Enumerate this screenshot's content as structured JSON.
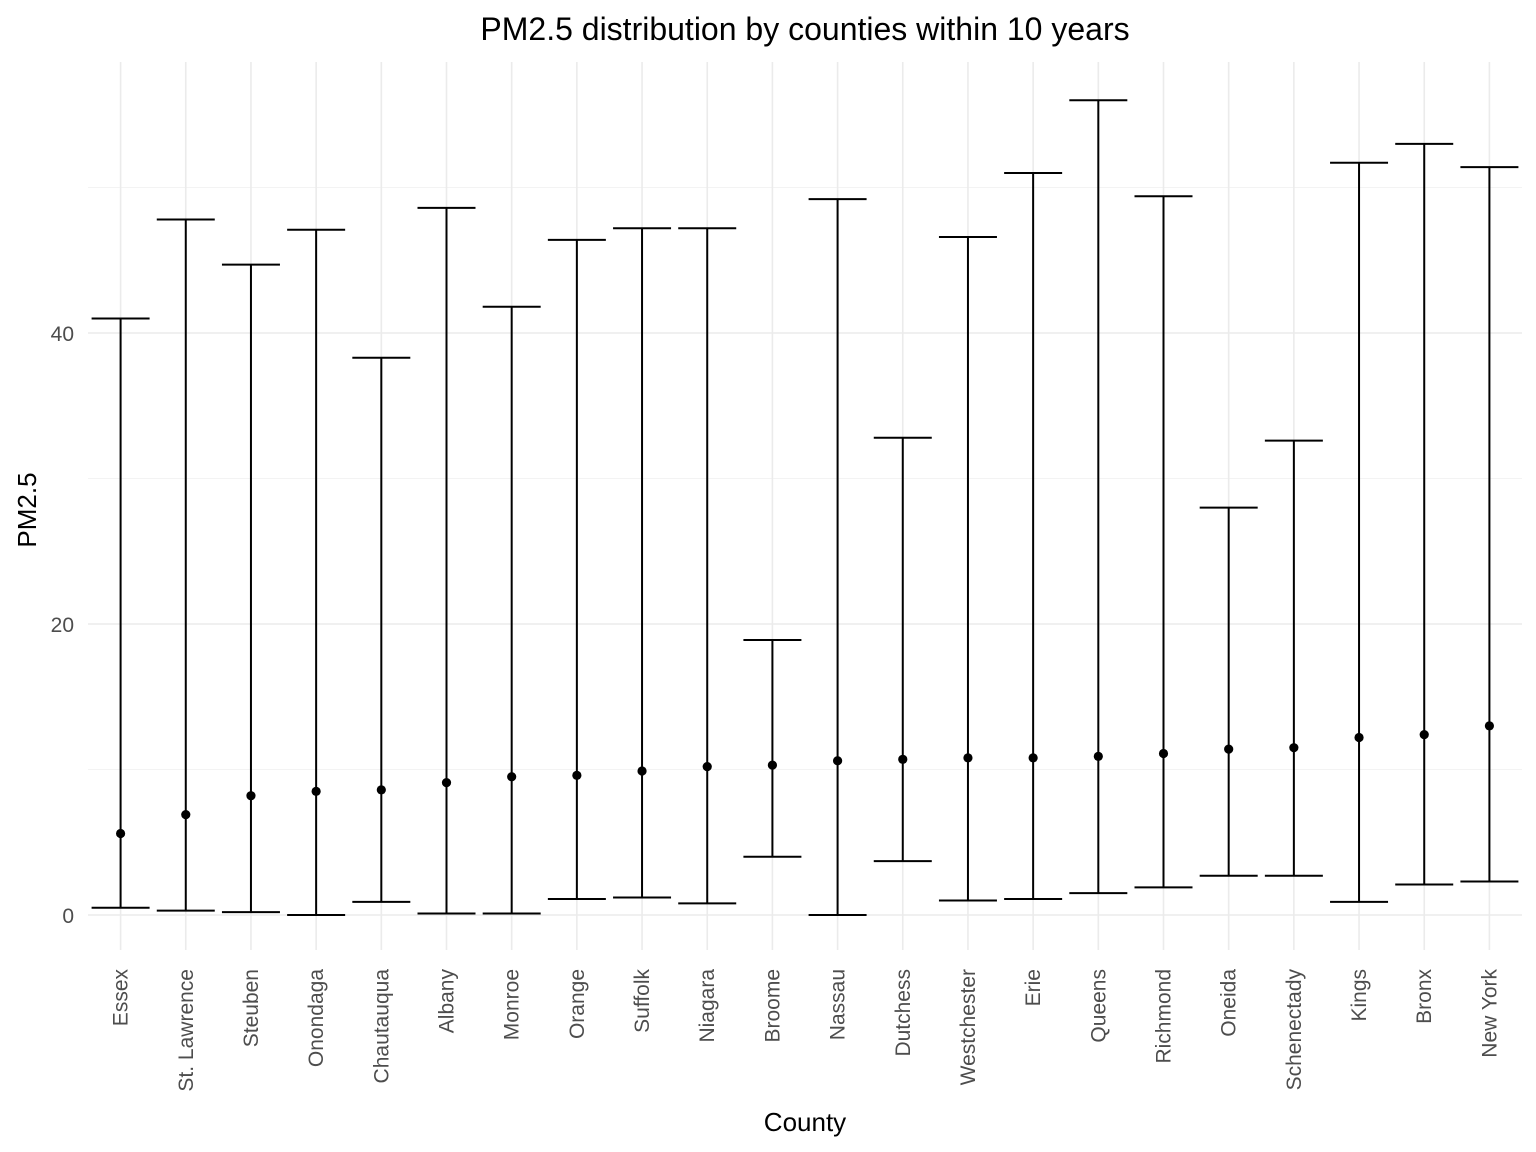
{
  "chart_data": {
    "type": "errorbar",
    "title": "PM2.5 distribution by counties within 10 years",
    "xlabel": "County",
    "ylabel": "PM2.5",
    "ylim": [
      -2.5,
      58.5
    ],
    "yticks": [
      0,
      20,
      40
    ],
    "grid": true,
    "legend": "none",
    "categories": [
      "Essex",
      "St. Lawrence",
      "Steuben",
      "Onondaga",
      "Chautauqua",
      "Albany",
      "Monroe",
      "Orange",
      "Suffolk",
      "Niagara",
      "Broome",
      "Nassau",
      "Dutchess",
      "Westchester",
      "Erie",
      "Queens",
      "Richmond",
      "Oneida",
      "Schenectady",
      "Kings",
      "Bronx",
      "New York"
    ],
    "series": [
      {
        "name": "mean",
        "values": [
          5.6,
          6.9,
          8.2,
          8.5,
          8.6,
          9.1,
          9.5,
          9.6,
          9.9,
          10.2,
          10.3,
          10.6,
          10.7,
          10.8,
          10.8,
          10.9,
          11.1,
          11.4,
          11.5,
          12.2,
          12.4,
          13.0
        ]
      },
      {
        "name": "min",
        "values": [
          0.5,
          0.3,
          0.2,
          0.0,
          0.9,
          0.1,
          0.1,
          1.1,
          1.2,
          0.8,
          4.0,
          0.0,
          3.7,
          1.0,
          1.1,
          1.5,
          1.9,
          2.7,
          2.7,
          0.9,
          2.1,
          2.3
        ]
      },
      {
        "name": "max",
        "values": [
          41.0,
          47.8,
          44.7,
          47.1,
          38.3,
          48.6,
          41.8,
          46.4,
          47.2,
          47.2,
          18.9,
          49.2,
          32.8,
          46.6,
          51.0,
          56.0,
          49.4,
          28.0,
          32.6,
          51.7,
          53.0,
          51.4
        ]
      }
    ]
  }
}
